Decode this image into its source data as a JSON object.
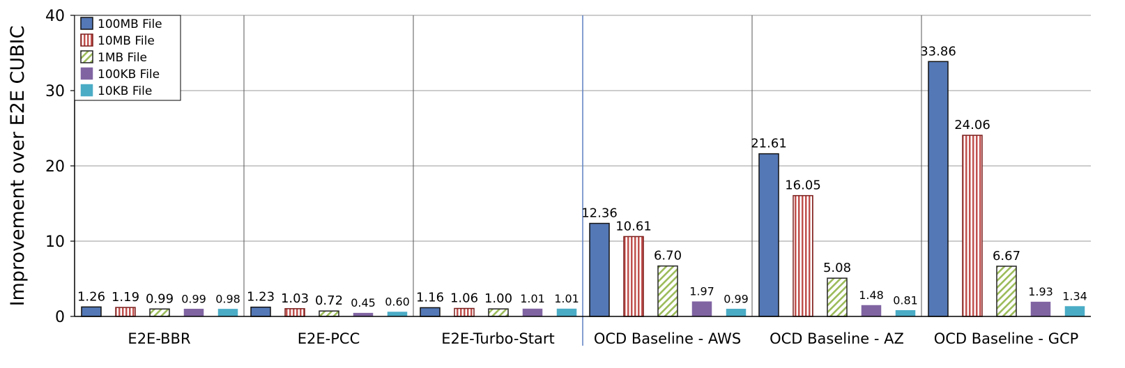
{
  "chart_data": {
    "type": "bar",
    "ylabel": "Improvement over E2E CUBIC",
    "xlabel": "",
    "ylim": [
      0,
      40
    ],
    "yticks": [
      0,
      10,
      20,
      30,
      40
    ],
    "grid": true,
    "legend_position": "top-left",
    "categories": [
      "E2E-BBR",
      "E2E-PCC",
      "E2E-Turbo-Start",
      "OCD Baseline - AWS",
      "OCD Baseline - AZ",
      "OCD Baseline - GCP"
    ],
    "series": [
      {
        "name": "100MB File",
        "color": "#5478b6",
        "pattern": "solid",
        "values": [
          1.26,
          1.23,
          1.16,
          12.36,
          21.61,
          33.86
        ],
        "labels": [
          "1.26",
          "1.23",
          "1.16",
          "12.36",
          "21.61",
          "33.86"
        ]
      },
      {
        "name": "10MB File",
        "color": "#c0504d",
        "pattern": "vertical-stripes",
        "values": [
          1.19,
          1.03,
          1.06,
          10.61,
          16.05,
          24.06
        ],
        "labels": [
          "1.19",
          "1.03",
          "1.06",
          "10.61",
          "16.05",
          "24.06"
        ]
      },
      {
        "name": "1MB File",
        "color": "#9bbb59",
        "pattern": "diagonal-stripes",
        "values": [
          0.99,
          0.72,
          1.0,
          6.7,
          5.08,
          6.67
        ],
        "labels": [
          "0.99",
          "0.72",
          "1.00",
          "6.70",
          "5.08",
          "6.67"
        ]
      },
      {
        "name": "100KB File",
        "color": "#8064a2",
        "pattern": "solid",
        "values": [
          0.99,
          0.45,
          1.01,
          1.97,
          1.48,
          1.93
        ],
        "labels": [
          "0.99",
          "0.45",
          "1.01",
          "1.97",
          "1.48",
          "1.93"
        ]
      },
      {
        "name": "10KB File",
        "color": "#4bacc6",
        "pattern": "solid",
        "values": [
          0.98,
          0.6,
          1.01,
          0.99,
          0.81,
          1.34
        ],
        "labels": [
          "0.98",
          "0.60",
          "1.01",
          "0.99",
          "0.81",
          "1.34"
        ]
      }
    ]
  }
}
